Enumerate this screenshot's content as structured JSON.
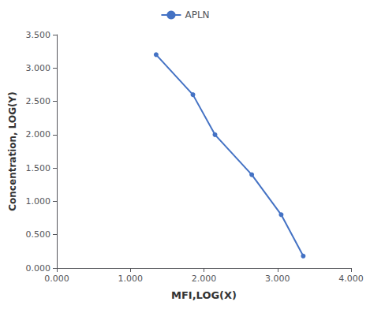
{
  "chart_data": {
    "type": "line",
    "x": [
      1.35,
      1.85,
      2.15,
      2.65,
      3.05,
      3.35
    ],
    "series": [
      {
        "name": "APLN",
        "color": "#4472C4",
        "values": [
          3.2,
          2.6,
          2.0,
          1.4,
          0.8,
          0.18
        ]
      }
    ],
    "xlabel": "MFI,LOG(X)",
    "ylabel": "Concentration, LOG(Y)",
    "xlim": [
      0.0,
      4.0
    ],
    "ylim": [
      0.0,
      3.5
    ],
    "xticks": [
      {
        "value": 0,
        "label": "0.000"
      },
      {
        "value": 1,
        "label": "1.000"
      },
      {
        "value": 2,
        "label": "2.000"
      },
      {
        "value": 3,
        "label": "3.000"
      },
      {
        "value": 4,
        "label": "4.000"
      }
    ],
    "yticks": [
      {
        "value": 0,
        "label": "0.000"
      },
      {
        "value": 0.5,
        "label": "0.500"
      },
      {
        "value": 1,
        "label": "1.000"
      },
      {
        "value": 1.5,
        "label": "1.500"
      },
      {
        "value": 2,
        "label": "2.000"
      },
      {
        "value": 2.5,
        "label": "2.500"
      },
      {
        "value": 3,
        "label": "3.000"
      },
      {
        "value": 3.5,
        "label": "3.500"
      }
    ],
    "marker": "circle",
    "legend": "top",
    "grid": false
  }
}
